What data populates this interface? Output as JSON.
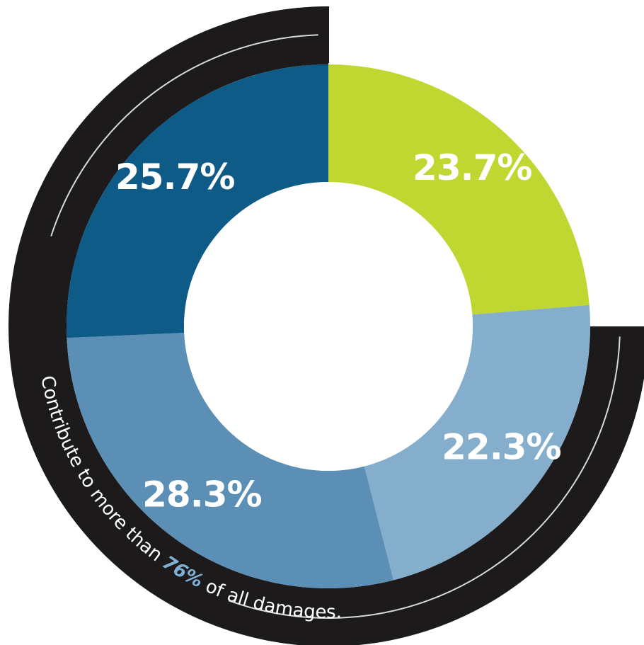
{
  "chart_data": {
    "type": "pie",
    "variant": "donut",
    "slices": [
      {
        "label": "23.7%",
        "value": 23.7,
        "color": "#bfd730"
      },
      {
        "label": "22.3%",
        "value": 22.3,
        "color": "#84aecb"
      },
      {
        "label": "28.3%",
        "value": 28.3,
        "color": "#5b8fb5"
      },
      {
        "label": "25.7%",
        "value": 25.7,
        "color": "#0f5b87"
      }
    ],
    "caption": {
      "before": "Contribute to more than ",
      "highlight": "76%",
      "after": " of all damages."
    }
  },
  "colors": {
    "ring": "#1c1a1b",
    "ring_line": "#d9d9d9",
    "center": "#ffffff",
    "highlight": "#7fb0d3"
  }
}
